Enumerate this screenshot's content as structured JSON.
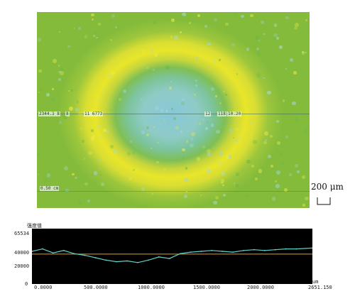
{
  "map": {
    "markers_left": [
      "2344.3 8",
      "8",
      "11 6773"
    ],
    "markers_right": [
      "12",
      "118",
      "10.20"
    ],
    "lower_label": "0.50 cm"
  },
  "scale_bar": {
    "label": "200 μm"
  },
  "profile": {
    "title": "强度值",
    "y_ticks": [
      "65534",
      "40000",
      "20000",
      "0"
    ],
    "x_ticks": [
      "0.0000",
      "500.0000",
      "1000.0000",
      "1500.0000",
      "2000.0000",
      "2651.150"
    ],
    "x_unit": "um"
  },
  "chart_data": {
    "type": "line",
    "title": "强度值",
    "xlabel": "um",
    "ylabel": "",
    "xlim": [
      0,
      2651.15
    ],
    "ylim": [
      0,
      65534
    ],
    "grid": false,
    "series": [
      {
        "name": "",
        "x": [
          0,
          100,
          200,
          300,
          400,
          500,
          600,
          700,
          800,
          900,
          1000,
          1100,
          1200,
          1300,
          1400,
          1500,
          1600,
          1700,
          1800,
          1900,
          2000,
          2100,
          2200,
          2300,
          2400,
          2500,
          2651
        ],
        "y": [
          39000,
          42000,
          37000,
          40000,
          36000,
          34000,
          31000,
          28000,
          26000,
          27000,
          25000,
          28000,
          32000,
          30000,
          36000,
          38000,
          39000,
          40000,
          39000,
          38000,
          40000,
          41000,
          40000,
          41000,
          42000,
          42000,
          43000
        ]
      },
      {
        "name": "",
        "x": [
          0,
          2651
        ],
        "y": [
          35500,
          35500
        ]
      }
    ]
  },
  "colors": {
    "profile_trace": "#5fd1c9",
    "profile_ref": "#e0a020",
    "profile_bg": "#000000"
  }
}
